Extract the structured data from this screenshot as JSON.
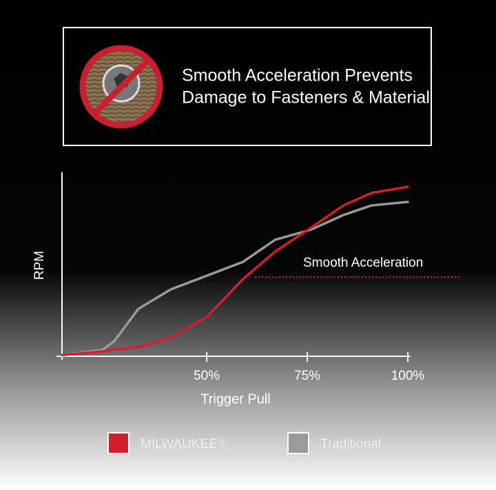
{
  "chart_data": {
    "type": "line",
    "header": [
      "Smooth Acceleration Prevents",
      "Damage to Fasteners & Material"
    ],
    "x_label": "Trigger Pull",
    "y_label": "RPM",
    "annotation": {
      "text": "Smooth Acceleration",
      "y": 43
    },
    "x": [
      14,
      24,
      27,
      33,
      41,
      50,
      59,
      67,
      76,
      84,
      91,
      100
    ],
    "series": [
      {
        "name": "MILWAUKEE®",
        "color": "#d0202e",
        "values": [
          0.7,
          2.6,
          3.7,
          4.9,
          10.1,
          21.3,
          41.9,
          56.9,
          70,
          82,
          88.8,
          92.1
        ]
      },
      {
        "name": "Traditional",
        "color": "#9a9a9c",
        "values": [
          0.7,
          3.4,
          8.2,
          25.8,
          36.3,
          43.8,
          51.3,
          63.3,
          68.9,
          76.8,
          82,
          83.9
        ]
      }
    ],
    "xlim": [
      14,
      100
    ],
    "ylim": [
      0,
      100
    ],
    "xticks": [
      {
        "value": 50,
        "label": "50%"
      },
      {
        "value": 75,
        "label": "75%"
      },
      {
        "value": 100,
        "label": "100%"
      }
    ]
  }
}
